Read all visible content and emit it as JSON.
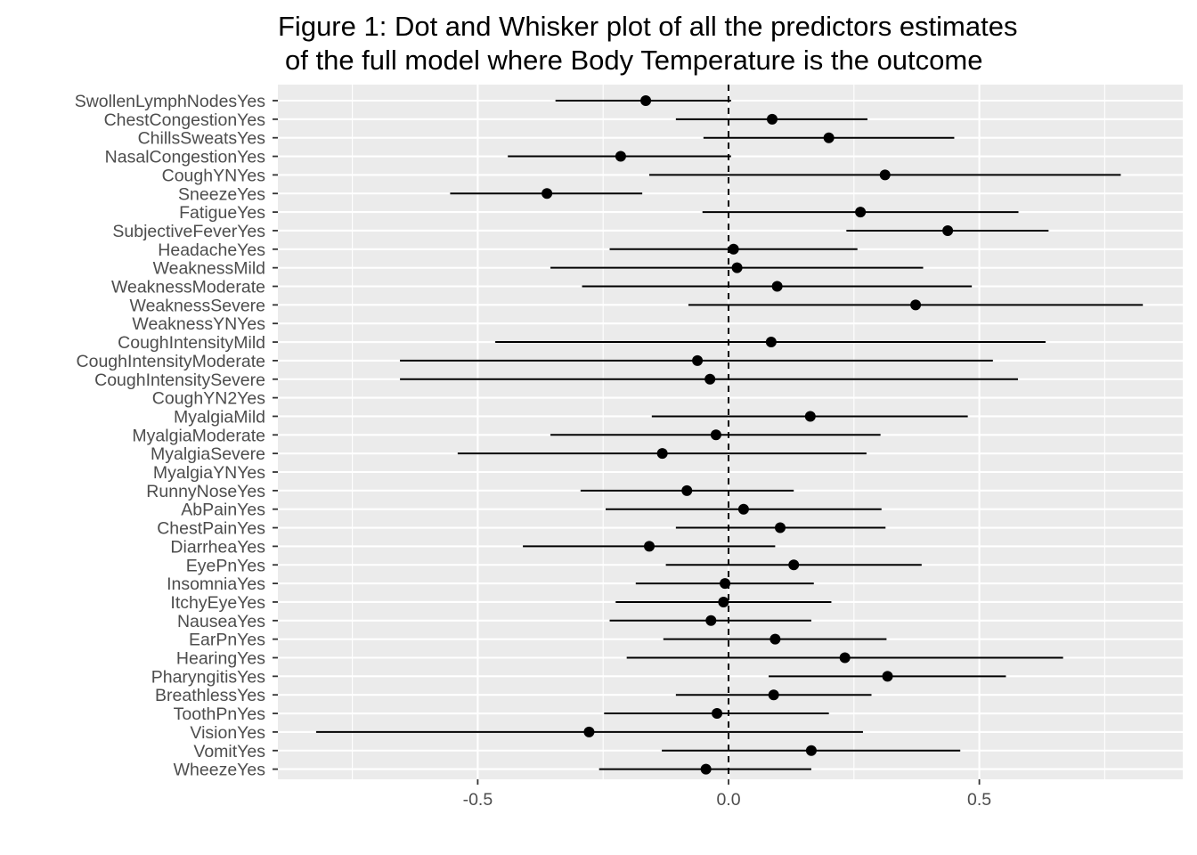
{
  "chart_data": {
    "type": "dot-and-whisker",
    "title_lines": [
      "Figure 1: Dot and Whisker plot of all the predictors estimates",
      "of the full model where Body Temperature is the outcome"
    ],
    "xlabel": "",
    "ylabel": "",
    "xlim": [
      -0.9,
      0.9
    ],
    "x_ticks": [
      -0.5,
      0.0,
      0.5
    ],
    "x_tick_labels": [
      "-0.5",
      "0.0",
      "0.5"
    ],
    "reference_line_x": 0,
    "grid": true,
    "legend": "none",
    "colors": {
      "panel": "#ebebeb",
      "grid": "#ffffff",
      "point": "#000000",
      "tick_text": "#4d4d4d"
    },
    "terms": [
      {
        "term": "SwollenLymphNodesYes",
        "estimate": -0.165,
        "conf_low": -0.345,
        "conf_high": 0.005
      },
      {
        "term": "ChestCongestionYes",
        "estimate": 0.087,
        "conf_low": -0.105,
        "conf_high": 0.277
      },
      {
        "term": "ChillsSweatsYes",
        "estimate": 0.2,
        "conf_low": -0.05,
        "conf_high": 0.45
      },
      {
        "term": "NasalCongestionYes",
        "estimate": -0.215,
        "conf_low": -0.44,
        "conf_high": 0.005
      },
      {
        "term": "CoughYNYes",
        "estimate": 0.312,
        "conf_low": -0.158,
        "conf_high": 0.782
      },
      {
        "term": "SneezeYes",
        "estimate": -0.362,
        "conf_low": -0.555,
        "conf_high": -0.172
      },
      {
        "term": "FatigueYes",
        "estimate": 0.263,
        "conf_low": -0.052,
        "conf_high": 0.578
      },
      {
        "term": "SubjectiveFeverYes",
        "estimate": 0.437,
        "conf_low": 0.235,
        "conf_high": 0.638
      },
      {
        "term": "HeadacheYes",
        "estimate": 0.01,
        "conf_low": -0.237,
        "conf_high": 0.257
      },
      {
        "term": "WeaknessMild",
        "estimate": 0.017,
        "conf_low": -0.355,
        "conf_high": 0.388
      },
      {
        "term": "WeaknessModerate",
        "estimate": 0.097,
        "conf_low": -0.292,
        "conf_high": 0.485
      },
      {
        "term": "WeaknessSevere",
        "estimate": 0.373,
        "conf_low": -0.08,
        "conf_high": 0.826
      },
      {
        "term": "WeaknessYNYes",
        "estimate": null,
        "conf_low": null,
        "conf_high": null
      },
      {
        "term": "CoughIntensityMild",
        "estimate": 0.085,
        "conf_low": -0.465,
        "conf_high": 0.632
      },
      {
        "term": "CoughIntensityModerate",
        "estimate": -0.062,
        "conf_low": -0.655,
        "conf_high": 0.527
      },
      {
        "term": "CoughIntensitySevere",
        "estimate": -0.037,
        "conf_low": -0.655,
        "conf_high": 0.577
      },
      {
        "term": "CoughYN2Yes",
        "estimate": null,
        "conf_low": null,
        "conf_high": null
      },
      {
        "term": "MyalgiaMild",
        "estimate": 0.163,
        "conf_low": -0.153,
        "conf_high": 0.477
      },
      {
        "term": "MyalgiaModerate",
        "estimate": -0.025,
        "conf_low": -0.355,
        "conf_high": 0.303
      },
      {
        "term": "MyalgiaSevere",
        "estimate": -0.132,
        "conf_low": -0.54,
        "conf_high": 0.275
      },
      {
        "term": "MyalgiaYNYes",
        "estimate": null,
        "conf_low": null,
        "conf_high": null
      },
      {
        "term": "RunnyNoseYes",
        "estimate": -0.083,
        "conf_low": -0.295,
        "conf_high": 0.13
      },
      {
        "term": "AbPainYes",
        "estimate": 0.03,
        "conf_low": -0.245,
        "conf_high": 0.305
      },
      {
        "term": "ChestPainYes",
        "estimate": 0.103,
        "conf_low": -0.105,
        "conf_high": 0.313
      },
      {
        "term": "DiarrheaYes",
        "estimate": -0.158,
        "conf_low": -0.41,
        "conf_high": 0.093
      },
      {
        "term": "EyePnYes",
        "estimate": 0.13,
        "conf_low": -0.125,
        "conf_high": 0.385
      },
      {
        "term": "InsomniaYes",
        "estimate": -0.007,
        "conf_low": -0.185,
        "conf_high": 0.17
      },
      {
        "term": "ItchyEyeYes",
        "estimate": -0.01,
        "conf_low": -0.225,
        "conf_high": 0.205
      },
      {
        "term": "NauseaYes",
        "estimate": -0.035,
        "conf_low": -0.237,
        "conf_high": 0.165
      },
      {
        "term": "EarPnYes",
        "estimate": 0.093,
        "conf_low": -0.13,
        "conf_high": 0.315
      },
      {
        "term": "HearingYes",
        "estimate": 0.232,
        "conf_low": -0.203,
        "conf_high": 0.667
      },
      {
        "term": "PharyngitisYes",
        "estimate": 0.317,
        "conf_low": 0.08,
        "conf_high": 0.553
      },
      {
        "term": "BreathlessYes",
        "estimate": 0.09,
        "conf_low": -0.105,
        "conf_high": 0.285
      },
      {
        "term": "ToothPnYes",
        "estimate": -0.023,
        "conf_low": -0.248,
        "conf_high": 0.2
      },
      {
        "term": "VisionYes",
        "estimate": -0.278,
        "conf_low": -0.822,
        "conf_high": 0.268
      },
      {
        "term": "VomitYes",
        "estimate": 0.165,
        "conf_low": -0.133,
        "conf_high": 0.462
      },
      {
        "term": "WheezeYes",
        "estimate": -0.045,
        "conf_low": -0.258,
        "conf_high": 0.165
      }
    ]
  }
}
